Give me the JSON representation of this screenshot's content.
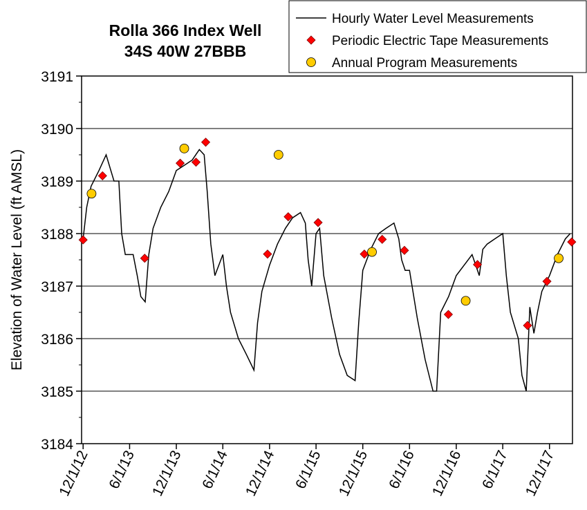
{
  "chart_data": {
    "type": "line",
    "title": "Rolla 366 Index Well",
    "subtitle": "34S 40W 27BBB",
    "y_label": "Elevation of Water Level (ft AMSL)",
    "xlim": [
      "11/25/12",
      "3/1/18"
    ],
    "xticks": [
      "12/1/12",
      "6/1/13",
      "12/1/13",
      "6/1/14",
      "12/1/14",
      "6/1/15",
      "12/1/15",
      "6/1/16",
      "12/1/16",
      "6/1/17",
      "12/1/17"
    ],
    "ylim": [
      3184,
      3191
    ],
    "yticks": [
      3184,
      3185,
      3186,
      3187,
      3188,
      3189,
      3190,
      3191
    ],
    "grid": true,
    "legend": "top-right",
    "series": [
      {
        "name": "Hourly Water Level Measurements",
        "mark": "line",
        "color": "#000000",
        "x": [
          "12/1/12",
          "12/15/12",
          "1/1/13",
          "2/1/13",
          "3/1/13",
          "4/1/13",
          "4/20/13",
          "5/1/13",
          "5/15/13",
          "6/1/13",
          "6/15/13",
          "7/1/13",
          "7/15/13",
          "8/1/13",
          "8/15/13",
          "9/1/13",
          "10/1/13",
          "11/1/13",
          "12/1/13",
          "1/1/14",
          "2/1/14",
          "3/1/14",
          "3/20/14",
          "4/1/14",
          "4/15/14",
          "5/1/14",
          "6/1/14",
          "6/15/14",
          "7/1/14",
          "8/1/14",
          "9/1/14",
          "10/1/14",
          "10/15/14",
          "11/1/14",
          "12/1/14",
          "1/1/15",
          "2/1/15",
          "3/1/15",
          "4/1/15",
          "4/20/15",
          "5/1/15",
          "5/15/15",
          "6/1/15",
          "6/15/15",
          "7/1/15",
          "8/1/15",
          "9/1/15",
          "10/1/15",
          "11/1/15",
          "11/15/15",
          "12/1/15",
          "1/1/16",
          "2/1/16",
          "3/1/16",
          "4/1/16",
          "4/20/16",
          "5/1/16",
          "5/15/16",
          "6/1/16",
          "7/1/16",
          "8/1/16",
          "9/1/16",
          "9/15/16",
          "10/1/16",
          "11/1/16",
          "12/1/16",
          "1/1/17",
          "2/1/17",
          "3/1/17",
          "3/15/17",
          "4/1/17",
          "5/1/17",
          "6/1/17",
          "6/15/17",
          "7/1/17",
          "8/1/17",
          "8/15/17",
          "9/1/17",
          "9/15/17",
          "10/1/17",
          "10/15/17",
          "11/1/17",
          "12/1/17",
          "1/1/18",
          "2/1/18",
          "2/20/18"
        ],
        "values": [
          3187.9,
          3188.5,
          3188.9,
          3189.2,
          3189.5,
          3189.0,
          3189.0,
          3188.0,
          3187.6,
          3187.6,
          3187.6,
          3187.2,
          3186.8,
          3186.7,
          3187.6,
          3188.1,
          3188.5,
          3188.8,
          3189.2,
          3189.3,
          3189.4,
          3189.6,
          3189.5,
          3188.8,
          3187.8,
          3187.2,
          3187.6,
          3187.0,
          3186.5,
          3186.0,
          3185.7,
          3185.4,
          3186.3,
          3186.9,
          3187.4,
          3187.8,
          3188.1,
          3188.3,
          3188.4,
          3188.2,
          3187.5,
          3187.0,
          3188.0,
          3188.1,
          3187.2,
          3186.4,
          3185.7,
          3185.3,
          3185.2,
          3186.3,
          3187.3,
          3187.7,
          3188.0,
          3188.1,
          3188.2,
          3187.9,
          3187.5,
          3187.3,
          3187.3,
          3186.4,
          3185.6,
          3185.0,
          3185.0,
          3186.5,
          3186.8,
          3187.2,
          3187.4,
          3187.6,
          3187.2,
          3187.7,
          3187.8,
          3187.9,
          3188.0,
          3187.2,
          3186.5,
          3186.0,
          3185.3,
          3185.0,
          3186.6,
          3186.1,
          3186.5,
          3186.9,
          3187.2,
          3187.6,
          3187.9,
          3188.0
        ]
      },
      {
        "name": "Periodic Electric Tape Measurements",
        "mark": "diamond",
        "color": "#ff0000",
        "x": [
          "12/1/12",
          "2/15/13",
          "7/30/13",
          "12/16/13",
          "2/16/14",
          "3/26/14",
          "11/23/14",
          "2/12/15",
          "6/9/15",
          "12/7/15",
          "2/15/16",
          "5/12/16",
          "10/31/16",
          "2/22/17",
          "9/6/17",
          "11/21/17",
          "2/26/18"
        ],
        "values": [
          3187.88,
          3189.1,
          3187.53,
          3189.34,
          3189.36,
          3189.74,
          3187.61,
          3188.32,
          3188.21,
          3187.61,
          3187.89,
          3187.68,
          3186.46,
          3187.41,
          3186.25,
          3187.09,
          3187.84
        ]
      },
      {
        "name": "Annual Program Measurements",
        "mark": "circle",
        "color": "#ffcc00",
        "x": [
          "1/3/13",
          "1/1/14",
          "1/5/15",
          "1/6/16",
          "1/7/17",
          "1/6/18"
        ],
        "values": [
          3188.76,
          3189.62,
          3189.5,
          3187.65,
          3186.72,
          3187.53
        ]
      }
    ]
  }
}
